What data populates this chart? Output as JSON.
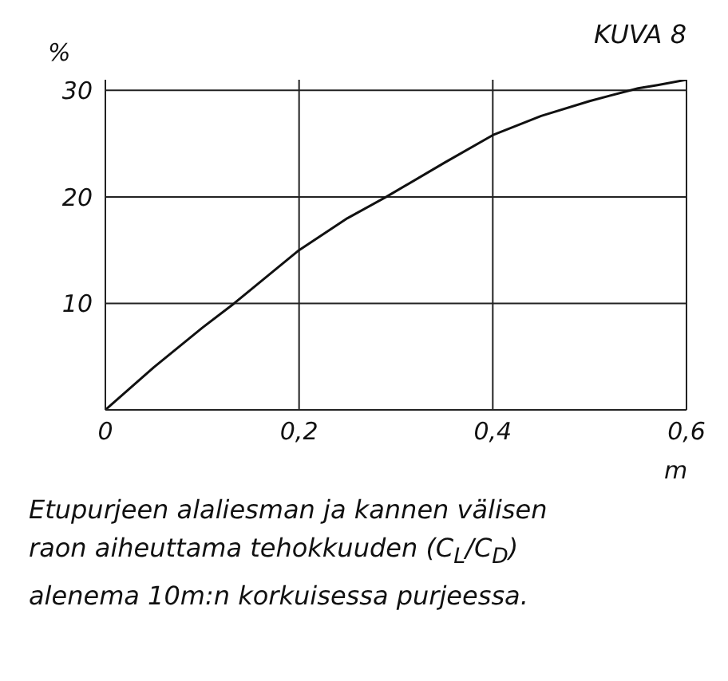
{
  "chart_data": {
    "type": "line",
    "title": "KUVA 8",
    "ylabel": "%",
    "xlabel": "m",
    "annotations": [
      "Etupurjeen alaliesman ja kannen välisen raon aiheuttama tehokkuuden (C$_{L}$/C$_{D}$) alenema 10m:n korkuisessa purjeessa."
    ],
    "x": [
      0,
      0.05,
      0.1,
      0.133,
      0.2,
      0.25,
      0.29,
      0.35,
      0.4,
      0.45,
      0.5,
      0.55,
      0.57,
      0.6
    ],
    "series": [
      {
        "color": "#111111",
        "values": [
          0,
          4,
          7.7,
          10,
          15,
          18,
          20,
          23.2,
          25.8,
          27.6,
          29,
          30.2,
          30.5,
          31
        ]
      }
    ],
    "xlim": [
      0,
      0.6
    ],
    "ylim": [
      0,
      31
    ],
    "xticks": [
      {
        "value": 0,
        "label": "0"
      },
      {
        "value": 0.2,
        "label": "0,2"
      },
      {
        "value": 0.4,
        "label": "0,4"
      },
      {
        "value": 0.6,
        "label": "0,6"
      }
    ],
    "yticks": [
      {
        "value": 0,
        "label": null
      },
      10,
      20,
      30
    ],
    "grid": true,
    "marker": "none",
    "line_style": "solid"
  }
}
